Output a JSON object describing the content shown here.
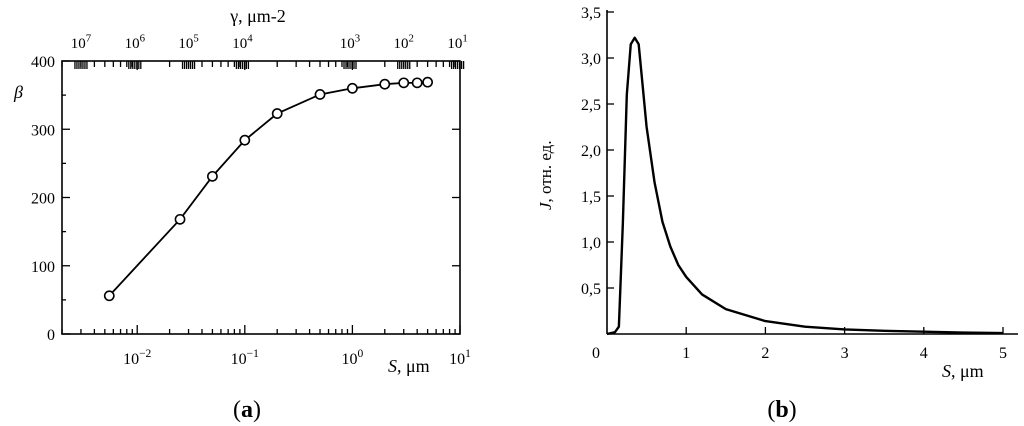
{
  "chart_data": [
    {
      "id": "a",
      "type": "line",
      "panel_label": "a",
      "ylabel": "β",
      "xlabel_var": "S",
      "xlabel_unit": "μm",
      "top_axis_label": "γ,  μm-2",
      "xscale": "log",
      "xlim": [
        0.002,
        10
      ],
      "ylim": [
        0,
        400
      ],
      "y_ticks": [
        0,
        100,
        200,
        300,
        400
      ],
      "x_ticks": [
        {
          "value": 0.01,
          "base": "10",
          "exp": "−2"
        },
        {
          "value": 0.1,
          "base": "10",
          "exp": "−1"
        },
        {
          "value": 1,
          "base": "10",
          "exp": "0"
        },
        {
          "value": 10,
          "base": "10",
          "exp": "1"
        }
      ],
      "top_ticks": [
        {
          "position": 0.003,
          "base": "10",
          "exp": "7"
        },
        {
          "position": 0.0095,
          "base": "10",
          "exp": "6"
        },
        {
          "position": 0.03,
          "base": "10",
          "exp": "5"
        },
        {
          "position": 0.095,
          "base": "10",
          "exp": "4"
        },
        {
          "position": 0.95,
          "base": "10",
          "exp": "3"
        },
        {
          "position": 3.0,
          "base": "10",
          "exp": "2"
        },
        {
          "position": 9.5,
          "base": "10",
          "exp": "1"
        }
      ],
      "series": [
        {
          "marker": "open-circle",
          "x": [
            0.0055,
            0.025,
            0.05,
            0.1,
            0.2,
            0.5,
            1.0,
            2.0,
            3.0,
            4.0,
            5.0
          ],
          "y": [
            56,
            168,
            231,
            284,
            323,
            351,
            360,
            366,
            368,
            368,
            369
          ]
        }
      ]
    },
    {
      "id": "b",
      "type": "line",
      "panel_label": "b",
      "ylabel_var": "J",
      "ylabel_rest": ", отн. ед.",
      "xlabel_var": "S",
      "xlabel_unit": "μm",
      "xlim": [
        0,
        5
      ],
      "ylim": [
        0,
        3.5
      ],
      "x_ticks": [
        "0",
        "1",
        "2",
        "3",
        "4",
        "5"
      ],
      "y_ticks": [
        "0,5",
        "1,0",
        "1,5",
        "2,0",
        "2,5",
        "3,0",
        "3,5"
      ],
      "series": [
        {
          "x": [
            0.0,
            0.1,
            0.15,
            0.2,
            0.25,
            0.3,
            0.35,
            0.4,
            0.45,
            0.5,
            0.6,
            0.7,
            0.8,
            0.9,
            1.0,
            1.2,
            1.5,
            2.0,
            2.5,
            3.0,
            3.5,
            4.0,
            4.5,
            5.0
          ],
          "y": [
            0.0,
            0.02,
            0.08,
            1.2,
            2.6,
            3.15,
            3.22,
            3.15,
            2.7,
            2.25,
            1.65,
            1.22,
            0.95,
            0.75,
            0.62,
            0.43,
            0.27,
            0.14,
            0.08,
            0.05,
            0.035,
            0.025,
            0.015,
            0.01
          ]
        }
      ]
    }
  ]
}
